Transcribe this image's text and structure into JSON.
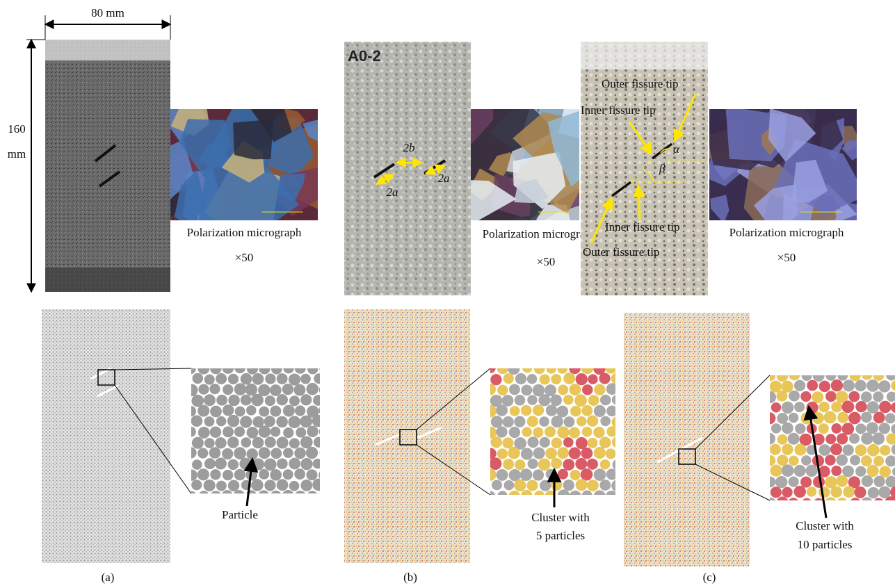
{
  "panel_a": {
    "label": "(a)",
    "width": "80 mm",
    "height": [
      "160",
      "mm"
    ],
    "caption": "Polarization micrograph",
    "magnification": "×50",
    "particle": "Particle"
  },
  "panel_b": {
    "label": "(b)",
    "specimen_id": "A0-2",
    "spacing": "2b",
    "length": [
      "2a",
      "2a"
    ],
    "caption": "Polarization micrograph",
    "magnification": "×50",
    "cluster": [
      "Cluster with",
      "5 particles"
    ]
  },
  "panel_c": {
    "label": "(c)",
    "tips": [
      "Outer fissure tip",
      "Inner fissure tip",
      "Inner fissure tip",
      "Outer fissure tip"
    ],
    "angles": [
      "α",
      "β"
    ],
    "caption": "Polarization micrograph",
    "magnification": "×50",
    "cluster": [
      "Cluster with",
      "10 particles"
    ]
  }
}
